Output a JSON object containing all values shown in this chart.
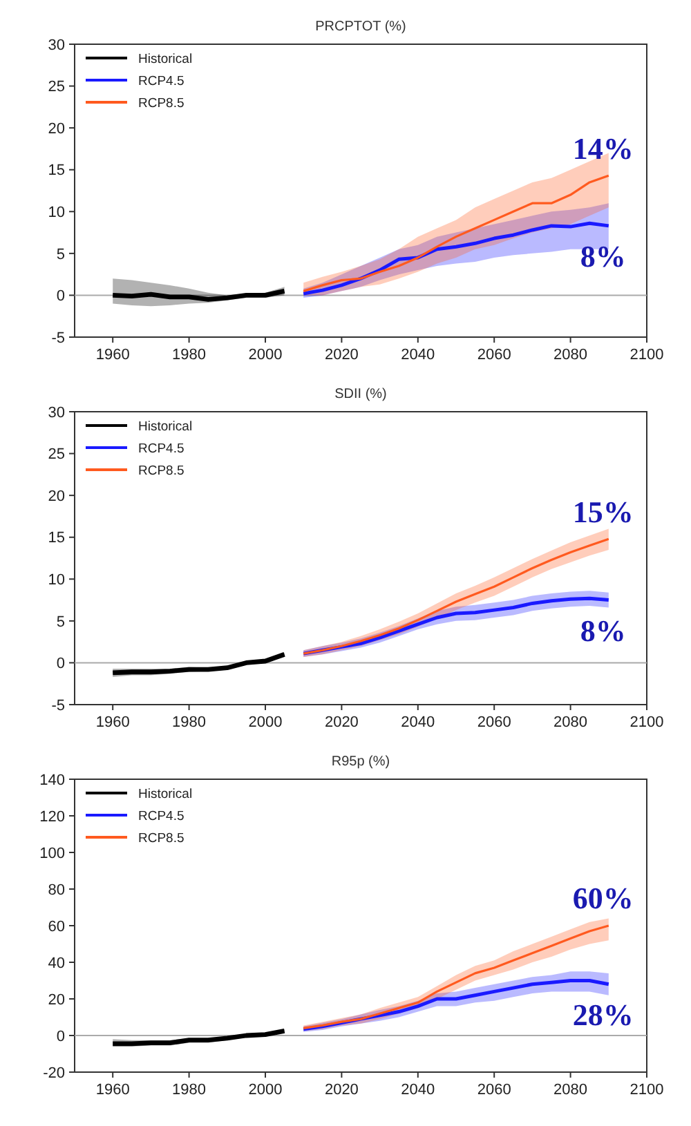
{
  "chart_data": [
    {
      "type": "line",
      "title": "PRCPTOT (%)",
      "xlim": [
        1950,
        2100
      ],
      "xticks": [
        1960,
        1980,
        2000,
        2020,
        2040,
        2060,
        2080,
        2100
      ],
      "ylim": [
        -5,
        30
      ],
      "yticks": [
        -5,
        0,
        5,
        10,
        15,
        20,
        25,
        30
      ],
      "grid": false,
      "legend": "top left",
      "ref_lines": [
        {
          "axis": "y",
          "value": 0,
          "color": "#aaaaaa"
        }
      ],
      "annotations": [
        "14%",
        "8%"
      ],
      "series": [
        {
          "name": "Historical",
          "color": "#000000",
          "x": [
            1960,
            1965,
            1970,
            1975,
            1980,
            1985,
            1990,
            1995,
            2000,
            2005
          ],
          "values": [
            0,
            -0.1,
            0.1,
            -0.2,
            -0.2,
            -0.5,
            -0.3,
            0,
            0,
            0.5
          ],
          "lower": [
            -1,
            -1.2,
            -1.3,
            -1.2,
            -1,
            -0.9,
            -0.6,
            -0.3,
            -0.3,
            0
          ],
          "upper": [
            2,
            1.8,
            1.5,
            1.2,
            0.8,
            0.3,
            0,
            0.2,
            0.3,
            1
          ]
        },
        {
          "name": "RCP4.5",
          "color": "#1a1aff",
          "x": [
            2010,
            2015,
            2020,
            2025,
            2030,
            2035,
            2040,
            2045,
            2050,
            2055,
            2060,
            2065,
            2070,
            2075,
            2080,
            2085,
            2090
          ],
          "values": [
            0.2,
            0.6,
            1.2,
            2,
            3,
            4.3,
            4.5,
            5.5,
            5.8,
            6.2,
            6.8,
            7.2,
            7.8,
            8.3,
            8.2,
            8.6,
            8.3
          ],
          "lower": [
            -0.3,
            0,
            0.5,
            1,
            1.8,
            2.5,
            3,
            3.5,
            3.8,
            4,
            4.5,
            4.8,
            5,
            5.2,
            5.5,
            5.5,
            5.5
          ],
          "upper": [
            0.8,
            1.5,
            2.5,
            3.5,
            4.5,
            5.5,
            6,
            7,
            7.5,
            8,
            8.5,
            9,
            9.5,
            10,
            10.2,
            10.5,
            11
          ]
        },
        {
          "name": "RCP8.5",
          "color": "#ff5a1f",
          "x": [
            2010,
            2015,
            2020,
            2025,
            2030,
            2035,
            2040,
            2045,
            2050,
            2055,
            2060,
            2065,
            2070,
            2075,
            2080,
            2085,
            2090
          ],
          "values": [
            0.5,
            1.2,
            1.8,
            2,
            2.8,
            3.5,
            4.5,
            5.8,
            7,
            8,
            9,
            10,
            11,
            11,
            12,
            13.5,
            14.3
          ],
          "lower": [
            0,
            0,
            0.5,
            1,
            1.3,
            2,
            2.8,
            3.8,
            4.5,
            5.5,
            6,
            6.8,
            7.5,
            8,
            8.5,
            9.5,
            10.5
          ],
          "upper": [
            1.5,
            2.2,
            2.8,
            3.5,
            4.3,
            5.5,
            7,
            8,
            9,
            10.5,
            11.5,
            12.5,
            13.5,
            14,
            15,
            16,
            17
          ]
        }
      ]
    },
    {
      "type": "line",
      "title": "SDII (%)",
      "xlim": [
        1950,
        2100
      ],
      "xticks": [
        1960,
        1980,
        2000,
        2020,
        2040,
        2060,
        2080,
        2100
      ],
      "ylim": [
        -5,
        30
      ],
      "yticks": [
        -5,
        0,
        5,
        10,
        15,
        20,
        25,
        30
      ],
      "grid": false,
      "legend": "top left",
      "ref_lines": [
        {
          "axis": "y",
          "value": 0,
          "color": "#aaaaaa"
        }
      ],
      "annotations": [
        "15%",
        "8%"
      ],
      "series": [
        {
          "name": "Historical",
          "color": "#000000",
          "x": [
            1960,
            1965,
            1970,
            1975,
            1980,
            1985,
            1990,
            1995,
            2000,
            2005
          ],
          "values": [
            -1.2,
            -1.1,
            -1.1,
            -1,
            -0.8,
            -0.8,
            -0.6,
            0,
            0.2,
            1
          ],
          "lower": [
            -1.7,
            -1.5,
            -1.5,
            -1.3,
            -1.1,
            -1,
            -0.8,
            -0.2,
            0,
            0.7
          ],
          "upper": [
            -0.7,
            -0.7,
            -0.7,
            -0.7,
            -0.5,
            -0.6,
            -0.4,
            0.2,
            0.4,
            1.2
          ]
        },
        {
          "name": "RCP4.5",
          "color": "#1a1aff",
          "x": [
            2010,
            2015,
            2020,
            2025,
            2030,
            2035,
            2040,
            2045,
            2050,
            2055,
            2060,
            2065,
            2070,
            2075,
            2080,
            2085,
            2090
          ],
          "values": [
            1.1,
            1.5,
            1.9,
            2.3,
            3,
            3.8,
            4.6,
            5.4,
            5.9,
            6,
            6.3,
            6.6,
            7.1,
            7.4,
            7.6,
            7.7,
            7.5
          ],
          "lower": [
            0.7,
            1,
            1.4,
            1.8,
            2.4,
            3.2,
            4,
            4.6,
            5,
            5.1,
            5.4,
            5.7,
            6.2,
            6.5,
            6.7,
            6.8,
            6.6
          ],
          "upper": [
            1.5,
            2,
            2.4,
            2.9,
            3.6,
            4.4,
            5.3,
            6.2,
            6.7,
            6.9,
            7.2,
            7.5,
            8,
            8.3,
            8.5,
            8.6,
            8.4
          ]
        },
        {
          "name": "RCP8.5",
          "color": "#ff5a1f",
          "x": [
            2010,
            2015,
            2020,
            2025,
            2030,
            2035,
            2040,
            2045,
            2050,
            2055,
            2060,
            2065,
            2070,
            2075,
            2080,
            2085,
            2090
          ],
          "values": [
            1.1,
            1.5,
            2,
            2.6,
            3.3,
            4.1,
            5.1,
            6.2,
            7.3,
            8.2,
            9.1,
            10.2,
            11.3,
            12.3,
            13.2,
            14,
            14.8
          ],
          "lower": [
            0.7,
            1,
            1.5,
            2,
            2.7,
            3.4,
            4.3,
            5.3,
            6.3,
            7.2,
            8,
            9.1,
            10.2,
            11.2,
            12,
            12.8,
            13.5
          ],
          "upper": [
            1.5,
            2,
            2.5,
            3.2,
            4,
            4.9,
            5.9,
            7.1,
            8.3,
            9.2,
            10.2,
            11.3,
            12.4,
            13.4,
            14.4,
            15.2,
            16
          ]
        }
      ]
    },
    {
      "type": "line",
      "title": "R95p (%)",
      "xlim": [
        1950,
        2100
      ],
      "xticks": [
        1960,
        1980,
        2000,
        2020,
        2040,
        2060,
        2080,
        2100
      ],
      "ylim": [
        -20,
        140
      ],
      "yticks": [
        -20,
        0,
        20,
        40,
        60,
        80,
        100,
        120,
        140
      ],
      "grid": false,
      "legend": "top left",
      "ref_lines": [
        {
          "axis": "y",
          "value": 0,
          "color": "#aaaaaa"
        }
      ],
      "annotations": [
        "60%",
        "28%"
      ],
      "series": [
        {
          "name": "Historical",
          "color": "#000000",
          "x": [
            1960,
            1965,
            1970,
            1975,
            1980,
            1985,
            1990,
            1995,
            2000,
            2005
          ],
          "values": [
            -4.5,
            -4.5,
            -4,
            -4,
            -2.5,
            -2.5,
            -1.5,
            0,
            0.5,
            2.5
          ],
          "lower": [
            -6,
            -6,
            -5.5,
            -5.5,
            -4,
            -4,
            -2.5,
            -1,
            -0.5,
            1.5
          ],
          "upper": [
            -2,
            -2.5,
            -2.5,
            -2.5,
            -1.5,
            -1.5,
            -0.5,
            1,
            1.5,
            3.5
          ]
        },
        {
          "name": "RCP4.5",
          "color": "#1a1aff",
          "x": [
            2010,
            2015,
            2020,
            2025,
            2030,
            2035,
            2040,
            2045,
            2050,
            2055,
            2060,
            2065,
            2070,
            2075,
            2080,
            2085,
            2090
          ],
          "values": [
            3.5,
            5,
            7,
            9,
            11,
            13,
            16,
            20,
            20,
            22,
            24,
            26,
            28,
            29,
            30,
            30,
            28
          ],
          "lower": [
            2,
            3,
            5,
            6.5,
            8,
            10,
            13,
            16,
            16,
            18,
            19,
            21,
            23,
            24,
            24,
            24,
            22
          ],
          "upper": [
            5,
            7,
            9,
            11.5,
            14,
            16,
            19,
            23,
            24,
            26,
            28,
            30,
            32,
            33,
            35,
            35,
            34
          ]
        },
        {
          "name": "RCP8.5",
          "color": "#ff5a1f",
          "x": [
            2010,
            2015,
            2020,
            2025,
            2030,
            2035,
            2040,
            2045,
            2050,
            2055,
            2060,
            2065,
            2070,
            2075,
            2080,
            2085,
            2090
          ],
          "values": [
            4,
            5.5,
            7.5,
            9,
            12,
            15,
            18,
            24,
            29,
            34,
            37,
            41,
            45,
            49,
            53,
            57,
            60
          ],
          "lower": [
            2.5,
            3.5,
            5.5,
            6.5,
            9,
            12,
            15,
            20,
            25,
            30,
            33,
            36,
            40,
            43,
            47,
            50,
            52
          ],
          "upper": [
            5.5,
            7.5,
            9.5,
            11.5,
            15,
            18,
            21,
            27,
            33,
            38,
            41,
            46,
            50,
            54,
            58,
            62,
            64
          ]
        }
      ]
    }
  ]
}
